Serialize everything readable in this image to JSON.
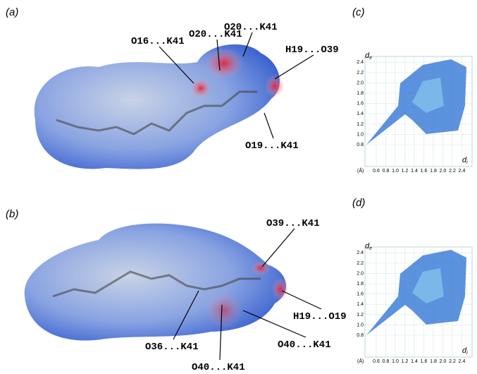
{
  "panels": [
    {
      "label": "(a)",
      "annotations": [
        "O20...K41",
        "O20...K41",
        "O16...K41",
        "H19...O39",
        "O19...K41"
      ]
    },
    {
      "label": "(b)",
      "annotations": [
        "O39...K41",
        "H19...O19",
        "O36...K41",
        "O40...K41",
        "O40...K41"
      ]
    }
  ],
  "fingerprint_plots": [
    {
      "label": "(c)",
      "y_axis_label": "d",
      "y_axis_subscript": "e",
      "x_axis_label": "d",
      "x_axis_subscript": "i",
      "unit": "(Å)",
      "x_ticks": [
        "0.6",
        "0.8",
        "1.0",
        "1.2",
        "1.4",
        "1.6",
        "1.8",
        "2.0",
        "2.2",
        "2.4"
      ],
      "y_ticks": [
        "0.8",
        "1.0",
        "1.2",
        "1.4",
        "1.6",
        "1.8",
        "2.0",
        "2.2",
        "2.4"
      ]
    },
    {
      "label": "(d)",
      "y_axis_label": "d",
      "y_axis_subscript": "e",
      "x_axis_label": "d",
      "x_axis_subscript": "i",
      "unit": "(Å)",
      "x_ticks": [
        "0.6",
        "0.8",
        "1.0",
        "1.2",
        "1.4",
        "1.6",
        "1.8",
        "2.0",
        "2.2",
        "2.4"
      ],
      "y_ticks": [
        "0.8",
        "1.0",
        "1.2",
        "1.4",
        "1.6",
        "1.8",
        "2.0",
        "2.2",
        "2.4"
      ]
    }
  ]
}
